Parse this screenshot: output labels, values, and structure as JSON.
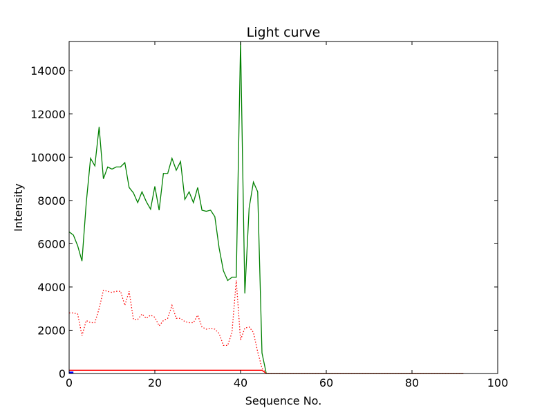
{
  "chart_data": {
    "type": "line",
    "title": "Light curve",
    "xlabel": "Sequence No.",
    "ylabel": "Intensity",
    "xlim": [
      0,
      100
    ],
    "ylim": [
      0,
      15350
    ],
    "x_ticks": [
      0,
      20,
      40,
      60,
      80,
      100
    ],
    "y_ticks": [
      0,
      2000,
      4000,
      6000,
      8000,
      10000,
      12000,
      14000
    ],
    "grid": false,
    "legend": "none",
    "colors": {
      "green": "#008000",
      "red": "#ff0000",
      "blue": "#0000ff",
      "frame": "#000000"
    },
    "series": [
      {
        "style": "solid",
        "color": "#008000",
        "x": [
          0,
          1,
          2,
          3,
          4,
          5,
          6,
          7,
          8,
          9,
          10,
          11,
          12,
          13,
          14,
          15,
          16,
          17,
          18,
          19,
          20,
          21,
          22,
          23,
          24,
          25,
          26,
          27,
          28,
          29,
          30,
          31,
          32,
          33,
          34,
          35,
          36,
          37,
          38,
          39,
          40,
          41,
          42,
          43,
          44,
          45,
          46,
          47,
          48,
          49,
          50,
          51,
          52,
          53,
          54,
          55,
          56,
          57,
          58,
          59,
          60,
          61,
          62,
          63,
          64,
          65,
          66,
          67,
          68,
          69,
          70,
          71,
          72,
          73,
          74,
          75,
          76,
          77,
          78,
          79,
          80,
          81,
          82,
          83,
          84,
          85,
          86,
          87,
          88,
          89,
          90,
          91,
          92
        ],
        "y": [
          6550,
          6400,
          5900,
          5200,
          7900,
          9950,
          9600,
          11400,
          9000,
          9550,
          9450,
          9550,
          9550,
          9750,
          8600,
          8350,
          7900,
          8400,
          7950,
          7600,
          8650,
          7550,
          9250,
          9250,
          9950,
          9400,
          9800,
          8050,
          8400,
          7900,
          8600,
          7550,
          7500,
          7550,
          7250,
          5800,
          4750,
          4300,
          4450,
          4450,
          15350,
          3700,
          7650,
          8850,
          8400,
          950,
          0,
          0,
          0,
          0,
          0,
          0,
          0,
          0,
          0,
          0,
          0,
          0,
          0,
          0,
          0,
          0,
          0,
          0,
          0,
          0,
          0,
          0,
          0,
          0,
          0,
          0,
          0,
          0,
          0,
          0,
          0,
          0,
          0,
          0,
          0,
          0,
          0,
          0,
          0,
          0,
          0,
          0,
          0,
          0,
          0,
          0,
          0
        ]
      },
      {
        "style": "dotted",
        "color": "#ff0000",
        "x": [
          0,
          1,
          2,
          3,
          4,
          5,
          6,
          7,
          8,
          9,
          10,
          11,
          12,
          13,
          14,
          15,
          16,
          17,
          18,
          19,
          20,
          21,
          22,
          23,
          24,
          25,
          26,
          27,
          28,
          29,
          30,
          31,
          32,
          33,
          34,
          35,
          36,
          37,
          38,
          39,
          40,
          41,
          42,
          43,
          44,
          45,
          46,
          47,
          48,
          49,
          50,
          51,
          52,
          53,
          54,
          55,
          56,
          57,
          58,
          59,
          60,
          61,
          62,
          63,
          64,
          65,
          66,
          67,
          68,
          69,
          70,
          71,
          72,
          73,
          74,
          75,
          76,
          77,
          78,
          79,
          80,
          81,
          82,
          83,
          84,
          85,
          86,
          87,
          88,
          89,
          90,
          91,
          92
        ],
        "y": [
          2800,
          2800,
          2750,
          1750,
          2450,
          2350,
          2350,
          3000,
          3850,
          3800,
          3750,
          3800,
          3800,
          3150,
          3800,
          2500,
          2500,
          2750,
          2550,
          2700,
          2600,
          2200,
          2450,
          2550,
          3150,
          2550,
          2550,
          2400,
          2350,
          2350,
          2700,
          2150,
          2050,
          2100,
          2050,
          1850,
          1300,
          1300,
          1900,
          4300,
          1550,
          2100,
          2150,
          1900,
          1000,
          250,
          0,
          0,
          0,
          0,
          0,
          0,
          0,
          0,
          0,
          0,
          0,
          0,
          0,
          0,
          0,
          0,
          0,
          0,
          0,
          0,
          0,
          0,
          0,
          0,
          0,
          0,
          0,
          0,
          0,
          0,
          0,
          0,
          0,
          0,
          0,
          0,
          0,
          0,
          0,
          0,
          0,
          0,
          0,
          0,
          0,
          0,
          0
        ]
      },
      {
        "style": "solid",
        "color": "#ff0000",
        "x": [
          0,
          1,
          2,
          3,
          4,
          5,
          6,
          7,
          8,
          9,
          10,
          11,
          12,
          13,
          14,
          15,
          16,
          17,
          18,
          19,
          20,
          21,
          22,
          23,
          24,
          25,
          26,
          27,
          28,
          29,
          30,
          31,
          32,
          33,
          34,
          35,
          36,
          37,
          38,
          39,
          40,
          41,
          42,
          43,
          44,
          45,
          46,
          47,
          48,
          49,
          50,
          51,
          52,
          53,
          54,
          55,
          56,
          57,
          58,
          59,
          60,
          61,
          62,
          63,
          64,
          65,
          66,
          67,
          68,
          69,
          70,
          71,
          72,
          73,
          74,
          75,
          76,
          77,
          78,
          79,
          80,
          81,
          82,
          83,
          84,
          85,
          86,
          87,
          88,
          89,
          90,
          91,
          92
        ],
        "y": [
          150,
          150,
          150,
          150,
          150,
          150,
          150,
          150,
          150,
          150,
          150,
          150,
          150,
          150,
          150,
          150,
          150,
          150,
          150,
          150,
          150,
          150,
          150,
          150,
          150,
          150,
          150,
          150,
          150,
          150,
          150,
          150,
          150,
          150,
          150,
          150,
          150,
          150,
          150,
          150,
          150,
          150,
          150,
          150,
          150,
          150,
          0,
          0,
          0,
          0,
          0,
          0,
          0,
          0,
          0,
          0,
          0,
          0,
          0,
          0,
          0,
          0,
          0,
          0,
          0,
          0,
          0,
          0,
          0,
          0,
          0,
          0,
          0,
          0,
          0,
          0,
          0,
          0,
          0,
          0,
          0,
          0,
          0,
          0,
          0,
          0,
          0,
          0,
          0,
          0,
          0,
          0,
          0
        ]
      },
      {
        "style": "solid",
        "color": "#0000ff",
        "x": [
          0,
          1
        ],
        "y": [
          40,
          40
        ]
      }
    ]
  }
}
